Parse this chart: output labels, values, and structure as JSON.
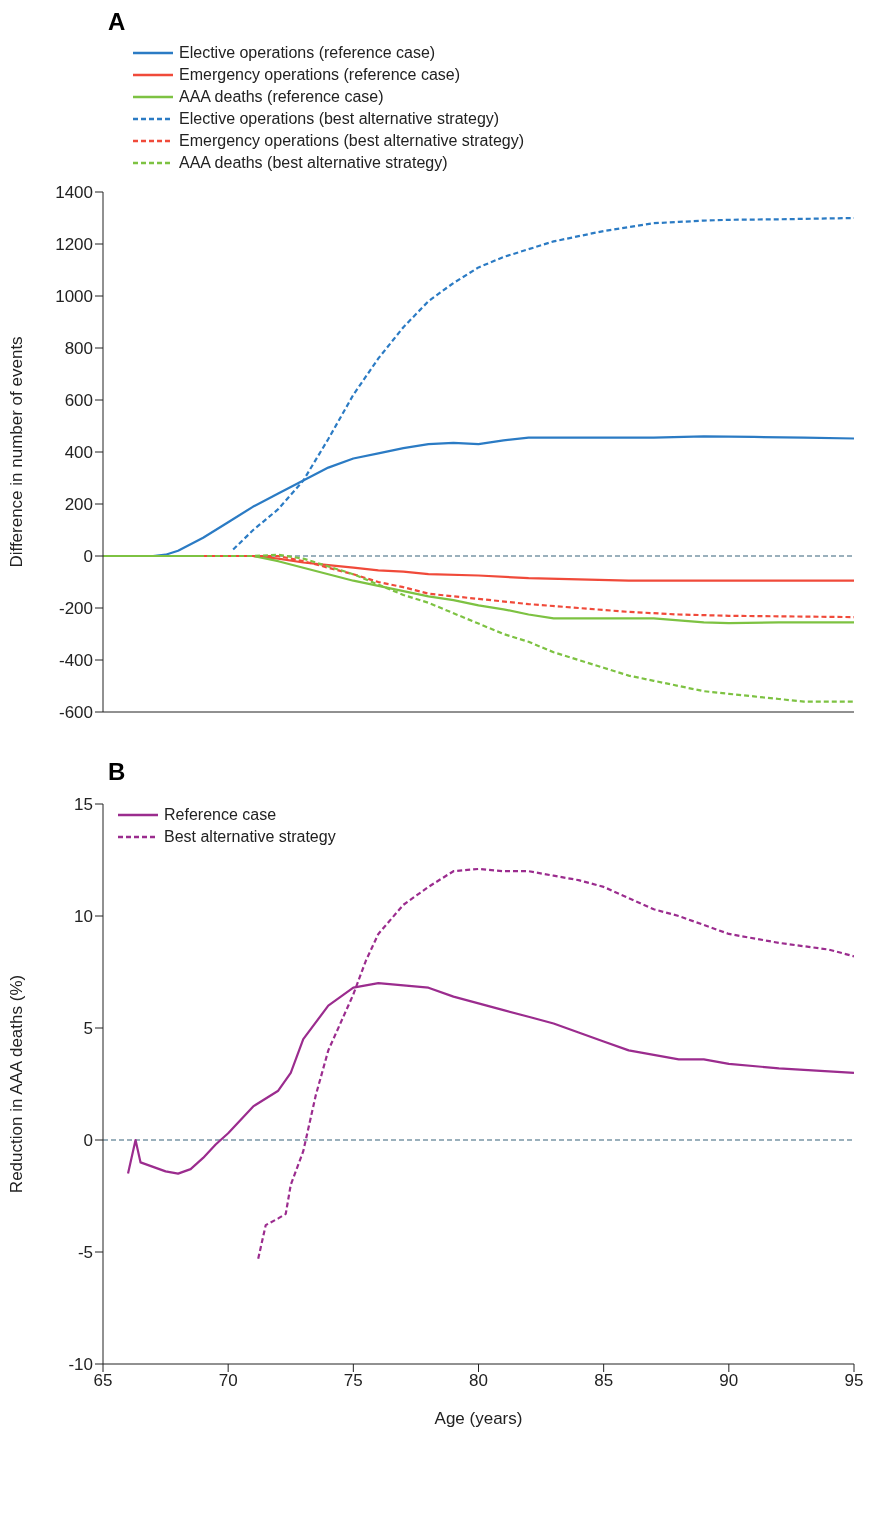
{
  "chart_data": [
    {
      "type": "line",
      "title": "A",
      "ylabel": "Difference in number of events",
      "legend": "top left",
      "marker": "none",
      "grid": false,
      "tick_labels": "y",
      "xlim": [
        65,
        95
      ],
      "xticks": [
        65,
        70,
        75,
        80,
        85,
        90,
        95
      ],
      "ylim": [
        -600,
        1400
      ],
      "yticks": [
        -600,
        -400,
        -200,
        0,
        200,
        400,
        600,
        800,
        1000,
        1200,
        1400
      ],
      "ref_lines": [
        {
          "axis": "y",
          "value": 0,
          "color": "#7a96a6",
          "line_style": "dashed"
        }
      ],
      "series": [
        {
          "name": "Elective operations (reference case)",
          "color": "#2b7bc4",
          "line_style": "solid",
          "x": [
            65,
            66,
            67,
            67.5,
            68,
            69,
            70,
            71,
            72,
            73,
            74,
            75,
            76,
            77,
            78,
            79,
            80,
            81,
            82,
            83,
            85,
            87,
            89,
            91,
            93,
            95
          ],
          "values": [
            0,
            0,
            0,
            5,
            20,
            70,
            130,
            190,
            240,
            290,
            340,
            375,
            395,
            415,
            430,
            435,
            430,
            445,
            455,
            455,
            455,
            455,
            460,
            458,
            455,
            452
          ]
        },
        {
          "name": "Emergency operations (reference case)",
          "color": "#f04a3a",
          "line_style": "solid",
          "x": [
            69,
            71,
            72,
            73,
            74,
            75,
            76,
            77,
            78,
            80,
            82,
            84,
            86,
            90,
            95
          ],
          "values": [
            0,
            0,
            -10,
            -25,
            -35,
            -45,
            -55,
            -60,
            -70,
            -75,
            -85,
            -90,
            -95,
            -95,
            -95
          ]
        },
        {
          "name": "AAA deaths (reference case)",
          "color": "#7dc242",
          "line_style": "solid",
          "x": [
            65,
            67,
            69,
            71,
            72,
            73,
            74,
            75,
            76,
            77,
            78,
            79,
            80,
            81,
            82,
            83,
            85,
            87,
            89,
            90,
            92,
            95
          ],
          "values": [
            0,
            0,
            0,
            0,
            -20,
            -45,
            -70,
            -95,
            -115,
            -135,
            -155,
            -170,
            -190,
            -205,
            -225,
            -240,
            -240,
            -240,
            -255,
            -258,
            -255,
            -255
          ]
        },
        {
          "name": "Elective operations (best alternative strategy)",
          "color": "#2b7bc4",
          "line_style": "dashed",
          "x": [
            70.2,
            71,
            72,
            73,
            74,
            75,
            76,
            77,
            78,
            79,
            80,
            81,
            82,
            83,
            84,
            85,
            86,
            87,
            88,
            89,
            90,
            92,
            95
          ],
          "values": [
            25,
            100,
            180,
            290,
            450,
            620,
            760,
            880,
            980,
            1050,
            1110,
            1150,
            1180,
            1210,
            1230,
            1250,
            1265,
            1280,
            1285,
            1290,
            1293,
            1295,
            1300
          ]
        },
        {
          "name": "Emergency operations (best alternative strategy)",
          "color": "#f04a3a",
          "line_style": "dashed",
          "x": [
            69,
            71,
            72,
            73,
            74,
            75,
            76,
            77,
            78,
            80,
            82,
            84,
            86,
            88,
            90,
            95
          ],
          "values": [
            0,
            0,
            0,
            -20,
            -45,
            -70,
            -100,
            -120,
            -145,
            -165,
            -185,
            -200,
            -215,
            -225,
            -230,
            -235
          ]
        },
        {
          "name": "AAA deaths (best alternative strategy)",
          "color": "#7dc242",
          "line_style": "dashed",
          "x": [
            65,
            67,
            69,
            71,
            72,
            73,
            74,
            75,
            76,
            77,
            78,
            79,
            80,
            81,
            82,
            83,
            84,
            85,
            86,
            87,
            88,
            89,
            90,
            91,
            92,
            93,
            94,
            95
          ],
          "values": [
            0,
            0,
            0,
            0,
            5,
            -10,
            -40,
            -70,
            -110,
            -150,
            -180,
            -220,
            -260,
            -300,
            -330,
            -370,
            -400,
            -430,
            -460,
            -480,
            -500,
            -520,
            -530,
            -540,
            -550,
            -560,
            -560,
            -560
          ]
        }
      ]
    },
    {
      "type": "line",
      "title": "B",
      "xlabel": "Age (years)",
      "ylabel": "Reduction in AAA deaths (%)",
      "legend": "top left",
      "marker": "none",
      "grid": false,
      "xlim": [
        65,
        95
      ],
      "xticks": [
        65,
        70,
        75,
        80,
        85,
        90,
        95
      ],
      "ylim": [
        -10,
        15
      ],
      "yticks": [
        -10,
        -5,
        0,
        5,
        10,
        15
      ],
      "ref_lines": [
        {
          "axis": "y",
          "value": 0,
          "color": "#7a96a6",
          "line_style": "dashed"
        }
      ],
      "series": [
        {
          "name": "Reference case",
          "color": "#9b2c8e",
          "line_style": "solid",
          "x": [
            66,
            66.3,
            66.5,
            67,
            67.5,
            68,
            68.5,
            69,
            69.5,
            70,
            71,
            72,
            72.5,
            73,
            74,
            75,
            76,
            77,
            78,
            79,
            80,
            81,
            82,
            83,
            84,
            85,
            86,
            87,
            88,
            89,
            90,
            92,
            95
          ],
          "values": [
            -1.5,
            0,
            -1,
            -1.2,
            -1.4,
            -1.5,
            -1.3,
            -0.8,
            -0.2,
            0.3,
            1.5,
            2.2,
            3,
            4.5,
            6,
            6.8,
            7,
            6.9,
            6.8,
            6.4,
            6.1,
            5.8,
            5.5,
            5.2,
            4.8,
            4.4,
            4,
            3.8,
            3.6,
            3.6,
            3.4,
            3.2,
            3
          ]
        },
        {
          "name": "Best alternative strategy",
          "color": "#9b2c8e",
          "line_style": "dashed",
          "x": [
            71.2,
            71.5,
            72,
            72.3,
            72.5,
            73,
            73.5,
            74,
            75,
            75.5,
            76,
            77,
            78,
            79,
            80,
            81,
            82,
            83,
            84,
            85,
            86,
            87,
            88,
            89,
            90,
            92,
            94,
            95
          ],
          "values": [
            -5.3,
            -3.8,
            -3.5,
            -3.3,
            -2,
            -0.5,
            2,
            4,
            6.5,
            8,
            9.2,
            10.5,
            11.3,
            12,
            12.1,
            12,
            12,
            11.8,
            11.6,
            11.3,
            10.8,
            10.3,
            10,
            9.6,
            9.2,
            8.8,
            8.5,
            8.2
          ]
        }
      ]
    }
  ]
}
